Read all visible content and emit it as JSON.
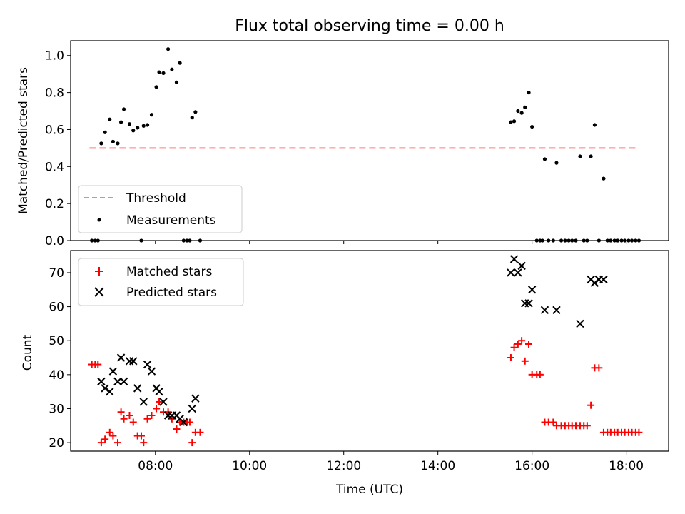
{
  "title": "Flux total observing time = 0.00 h",
  "chart_data": [
    {
      "type": "scatter",
      "ylabel": "Matched/Predicted stars",
      "xlabel": "",
      "xlim": [
        6.2,
        18.9
      ],
      "ylim": [
        0,
        1.08
      ],
      "yticks": [
        "0.0",
        "0.2",
        "0.4",
        "0.6",
        "0.8",
        "1.0"
      ],
      "ytick_values": [
        0,
        0.2,
        0.4,
        0.6,
        0.8,
        1.0
      ],
      "grid": false,
      "legend": "lower-left",
      "threshold": {
        "name": "Threshold",
        "y": 0.5,
        "x": [
          6.6,
          18.25
        ],
        "color": "#ff7f7f"
      },
      "series": [
        {
          "name": "Measurements",
          "color": "#000000",
          "points": [
            [
              6.65,
              0
            ],
            [
              6.72,
              0
            ],
            [
              6.78,
              0
            ],
            [
              6.85,
              0.525
            ],
            [
              6.93,
              0.585
            ],
            [
              7.03,
              0.655
            ],
            [
              7.1,
              0.535
            ],
            [
              7.2,
              0.525
            ],
            [
              7.27,
              0.64
            ],
            [
              7.33,
              0.71
            ],
            [
              7.45,
              0.63
            ],
            [
              7.53,
              0.595
            ],
            [
              7.62,
              0.61
            ],
            [
              7.75,
              0.62
            ],
            [
              7.7,
              0
            ],
            [
              7.83,
              0.625
            ],
            [
              7.92,
              0.68
            ],
            [
              8.02,
              0.83
            ],
            [
              8.08,
              0.91
            ],
            [
              8.17,
              0.905
            ],
            [
              8.27,
              1.035
            ],
            [
              8.35,
              0.925
            ],
            [
              8.45,
              0.855
            ],
            [
              8.52,
              0.96
            ],
            [
              8.6,
              0
            ],
            [
              8.67,
              0
            ],
            [
              8.73,
              0
            ],
            [
              8.78,
              0.665
            ],
            [
              8.85,
              0.695
            ],
            [
              8.95,
              0
            ],
            [
              15.55,
              0.64
            ],
            [
              15.62,
              0.645
            ],
            [
              15.7,
              0.7
            ],
            [
              15.78,
              0.69
            ],
            [
              15.85,
              0.72
            ],
            [
              15.93,
              0.8
            ],
            [
              16.0,
              0.615
            ],
            [
              16.1,
              0
            ],
            [
              16.17,
              0
            ],
            [
              16.22,
              0
            ],
            [
              16.27,
              0.44
            ],
            [
              16.35,
              0
            ],
            [
              16.45,
              0
            ],
            [
              16.52,
              0.42
            ],
            [
              16.62,
              0
            ],
            [
              16.7,
              0
            ],
            [
              16.78,
              0
            ],
            [
              16.85,
              0
            ],
            [
              16.93,
              0
            ],
            [
              17.02,
              0.455
            ],
            [
              17.1,
              0
            ],
            [
              17.17,
              0
            ],
            [
              17.25,
              0.455
            ],
            [
              17.33,
              0.625
            ],
            [
              17.42,
              0
            ],
            [
              17.52,
              0.335
            ],
            [
              17.6,
              0
            ],
            [
              17.67,
              0
            ],
            [
              17.75,
              0
            ],
            [
              17.82,
              0
            ],
            [
              17.9,
              0
            ],
            [
              17.97,
              0
            ],
            [
              18.05,
              0
            ],
            [
              18.12,
              0
            ],
            [
              18.2,
              0
            ],
            [
              18.27,
              0
            ]
          ]
        }
      ]
    },
    {
      "type": "scatter",
      "ylabel": "Count",
      "xlabel": "Time (UTC)",
      "xlim": [
        6.2,
        18.9
      ],
      "ylim": [
        17.5,
        76.5
      ],
      "yticks": [
        "20",
        "30",
        "40",
        "50",
        "60",
        "70"
      ],
      "ytick_values": [
        20,
        30,
        40,
        50,
        60,
        70
      ],
      "xticks": [
        "08:00",
        "10:00",
        "12:00",
        "14:00",
        "16:00",
        "18:00"
      ],
      "xtick_values": [
        8,
        10,
        12,
        14,
        16,
        18
      ],
      "grid": false,
      "legend": "top-left",
      "series": [
        {
          "name": "Matched stars",
          "marker": "plus",
          "color": "#ff0000",
          "points": [
            [
              6.65,
              43
            ],
            [
              6.72,
              43
            ],
            [
              6.78,
              43
            ],
            [
              6.85,
              20
            ],
            [
              6.93,
              21
            ],
            [
              7.03,
              23
            ],
            [
              7.1,
              22
            ],
            [
              7.2,
              20
            ],
            [
              7.27,
              29
            ],
            [
              7.33,
              27
            ],
            [
              7.45,
              28
            ],
            [
              7.53,
              26
            ],
            [
              7.62,
              22
            ],
            [
              7.7,
              22
            ],
            [
              7.75,
              20
            ],
            [
              7.83,
              27
            ],
            [
              7.92,
              28
            ],
            [
              8.02,
              30
            ],
            [
              8.08,
              32
            ],
            [
              8.17,
              29
            ],
            [
              8.27,
              29
            ],
            [
              8.35,
              27
            ],
            [
              8.45,
              24
            ],
            [
              8.52,
              26
            ],
            [
              8.6,
              26
            ],
            [
              8.67,
              26
            ],
            [
              8.73,
              26
            ],
            [
              8.78,
              20
            ],
            [
              8.85,
              23
            ],
            [
              8.95,
              23
            ],
            [
              15.55,
              45
            ],
            [
              15.62,
              48
            ],
            [
              15.7,
              49
            ],
            [
              15.78,
              50
            ],
            [
              15.85,
              44
            ],
            [
              15.93,
              49
            ],
            [
              16.0,
              40
            ],
            [
              16.1,
              40
            ],
            [
              16.17,
              40
            ],
            [
              16.27,
              26
            ],
            [
              16.35,
              26
            ],
            [
              16.45,
              26
            ],
            [
              16.52,
              25
            ],
            [
              16.62,
              25
            ],
            [
              16.7,
              25
            ],
            [
              16.78,
              25
            ],
            [
              16.85,
              25
            ],
            [
              16.93,
              25
            ],
            [
              17.02,
              25
            ],
            [
              17.1,
              25
            ],
            [
              17.17,
              25
            ],
            [
              17.25,
              31
            ],
            [
              17.33,
              42
            ],
            [
              17.42,
              42
            ],
            [
              17.52,
              23
            ],
            [
              17.6,
              23
            ],
            [
              17.67,
              23
            ],
            [
              17.75,
              23
            ],
            [
              17.82,
              23
            ],
            [
              17.9,
              23
            ],
            [
              17.97,
              23
            ],
            [
              18.05,
              23
            ],
            [
              18.12,
              23
            ],
            [
              18.2,
              23
            ],
            [
              18.27,
              23
            ]
          ]
        },
        {
          "name": "Predicted stars",
          "marker": "x",
          "color": "#000000",
          "points": [
            [
              6.85,
              38
            ],
            [
              6.93,
              36
            ],
            [
              7.03,
              35
            ],
            [
              7.1,
              41
            ],
            [
              7.2,
              38
            ],
            [
              7.27,
              45
            ],
            [
              7.33,
              38
            ],
            [
              7.45,
              44
            ],
            [
              7.53,
              44
            ],
            [
              7.62,
              36
            ],
            [
              7.75,
              32
            ],
            [
              7.83,
              43
            ],
            [
              7.92,
              41
            ],
            [
              8.02,
              36
            ],
            [
              8.08,
              35
            ],
            [
              8.17,
              32
            ],
            [
              8.27,
              28
            ],
            [
              8.35,
              28
            ],
            [
              8.45,
              28
            ],
            [
              8.52,
              27
            ],
            [
              8.6,
              26
            ],
            [
              8.78,
              30
            ],
            [
              8.85,
              33
            ],
            [
              15.55,
              70
            ],
            [
              15.62,
              74
            ],
            [
              15.7,
              70
            ],
            [
              15.78,
              72
            ],
            [
              15.85,
              61
            ],
            [
              15.93,
              61
            ],
            [
              16.0,
              65
            ],
            [
              16.27,
              59
            ],
            [
              16.52,
              59
            ],
            [
              17.02,
              55
            ],
            [
              17.25,
              68
            ],
            [
              17.33,
              67
            ],
            [
              17.42,
              68
            ],
            [
              17.52,
              68
            ]
          ]
        }
      ]
    }
  ]
}
